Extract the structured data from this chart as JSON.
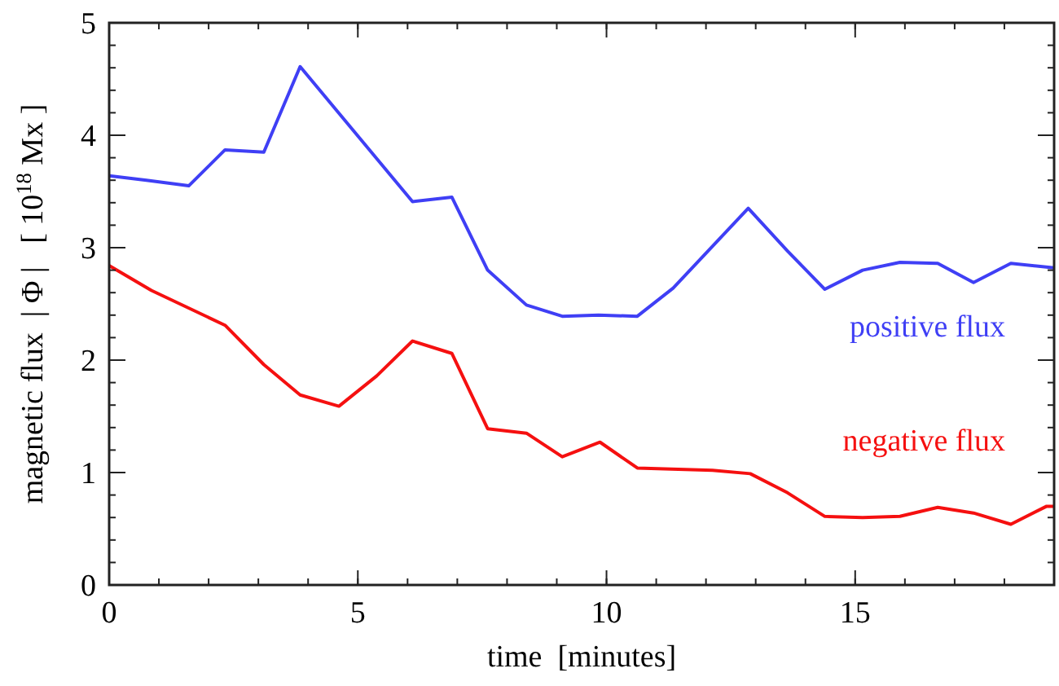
{
  "chart_data": {
    "type": "line",
    "xlabel": "time  [minutes]",
    "ylabel": "magnetic flux  | Φ |   [ 10$^{18}$ Mx ]",
    "xlim": [
      0,
      19
    ],
    "xticks": [
      0,
      5,
      10,
      15
    ],
    "ylim": [
      0,
      5
    ],
    "yticks": [
      0,
      1,
      2,
      3,
      4,
      5
    ],
    "grid": false,
    "marker": "none",
    "line_style": "solid",
    "series": [
      {
        "name": "positive flux",
        "color": "#3f3ff5",
        "x": [
          0,
          0.75,
          1.6,
          2.33,
          3.11,
          3.84,
          6.1,
          6.89,
          7.61,
          8.39,
          9.11,
          9.84,
          10.62,
          11.34,
          12.85,
          13.64,
          14.39,
          15.15,
          15.9,
          16.66,
          17.38,
          18.13,
          19
        ],
        "values": [
          3.64,
          3.6,
          3.55,
          3.87,
          3.85,
          4.61,
          3.41,
          3.45,
          2.8,
          2.49,
          2.39,
          2.4,
          2.39,
          2.64,
          3.35,
          2.97,
          2.63,
          2.8,
          2.87,
          2.86,
          2.69,
          2.86,
          2.82
        ]
      },
      {
        "name": "negative flux",
        "color": "#f51010",
        "x": [
          0,
          0.85,
          2.33,
          3.11,
          3.84,
          4.62,
          5.38,
          6.1,
          6.89,
          7.61,
          8.39,
          9.11,
          9.87,
          10.62,
          12.13,
          12.89,
          13.64,
          14.39,
          15.15,
          15.9,
          16.66,
          17.38,
          18.13,
          18.85,
          19
        ],
        "values": [
          2.84,
          2.62,
          2.31,
          1.96,
          1.69,
          1.59,
          1.86,
          2.17,
          2.06,
          1.39,
          1.35,
          1.14,
          1.27,
          1.04,
          1.02,
          0.99,
          0.82,
          0.61,
          0.6,
          0.61,
          0.69,
          0.64,
          0.54,
          0.7,
          0.7
        ]
      }
    ]
  }
}
